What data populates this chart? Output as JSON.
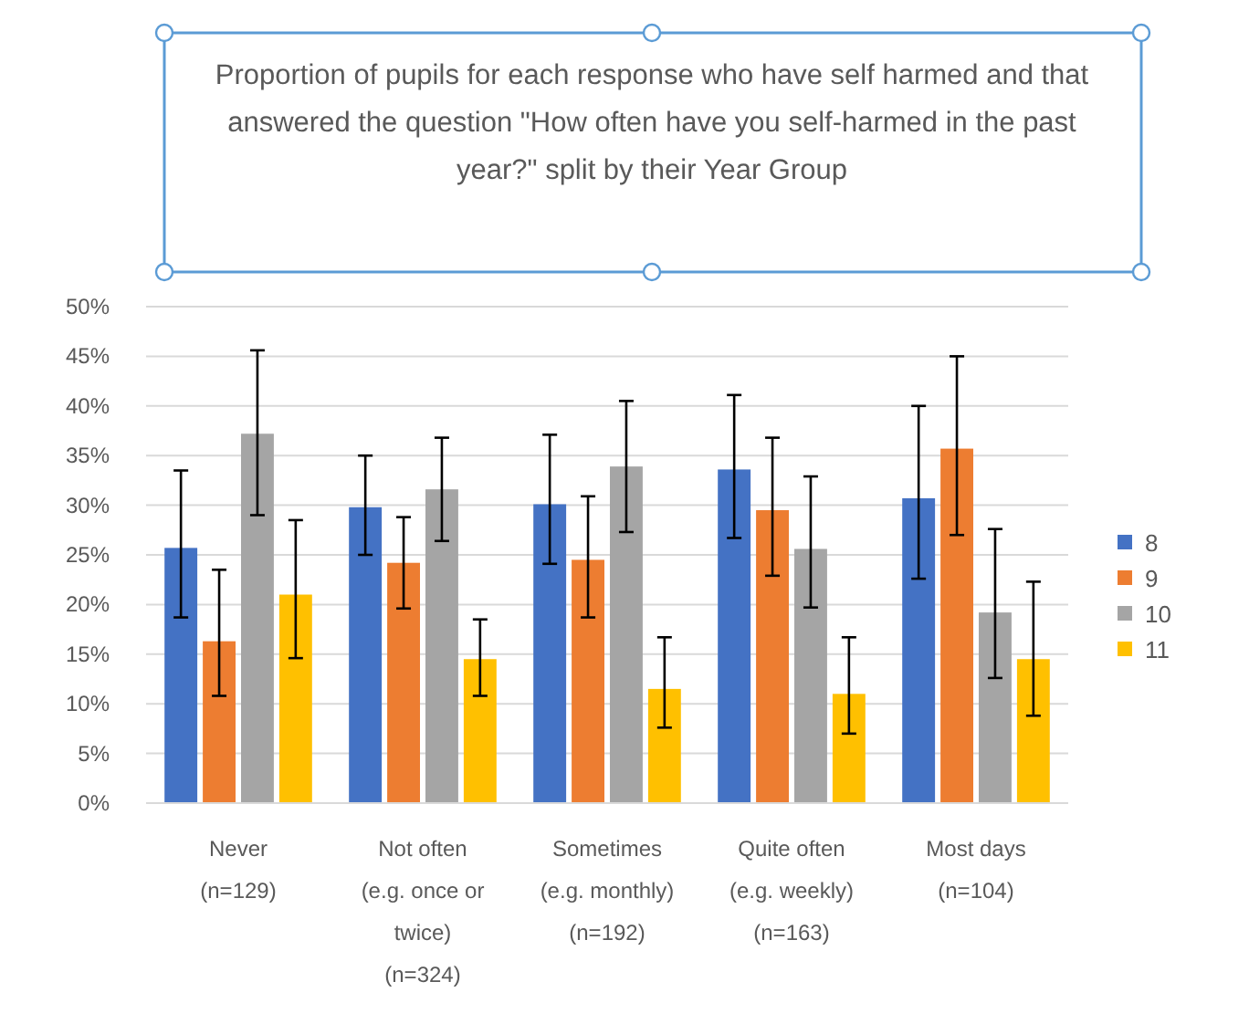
{
  "chart_data": {
    "type": "bar",
    "title": "Proportion of pupils for each response who have self harmed and that answered the question \"How often have you self-harmed in the past year?\" split by their Year Group",
    "categories": [
      "Never (n=129)",
      "Not often (e.g. once or twice) (n=324)",
      "Sometimes (e.g. monthly) (n=192)",
      "Quite often (e.g. weekly) (n=163)",
      "Most days (n=104)"
    ],
    "series": [
      {
        "name": "8",
        "color": "#4472c4",
        "values": [
          25.7,
          29.8,
          30.1,
          33.6,
          30.7
        ],
        "errors": [
          [
            18.7,
            33.5
          ],
          [
            25.0,
            35.0
          ],
          [
            24.1,
            37.1
          ],
          [
            26.7,
            41.1
          ],
          [
            22.6,
            40.0
          ]
        ]
      },
      {
        "name": "9",
        "color": "#ed7d31",
        "values": [
          16.3,
          24.2,
          24.5,
          29.5,
          35.7
        ],
        "errors": [
          [
            10.8,
            23.5
          ],
          [
            19.6,
            28.8
          ],
          [
            18.7,
            30.9
          ],
          [
            22.9,
            36.8
          ],
          [
            27.0,
            45.0
          ]
        ]
      },
      {
        "name": "10",
        "color": "#a5a5a5",
        "values": [
          37.2,
          31.6,
          33.9,
          25.6,
          19.2
        ],
        "errors": [
          [
            29.0,
            45.6
          ],
          [
            26.4,
            36.8
          ],
          [
            27.3,
            40.5
          ],
          [
            19.7,
            32.9
          ],
          [
            12.6,
            27.6
          ]
        ]
      },
      {
        "name": "11",
        "color": "#ffc000",
        "values": [
          21.0,
          14.5,
          11.5,
          11.0,
          14.5
        ],
        "errors": [
          [
            14.6,
            28.5
          ],
          [
            10.8,
            18.5
          ],
          [
            7.6,
            16.7
          ],
          [
            7.0,
            16.7
          ],
          [
            8.8,
            22.3
          ]
        ]
      }
    ],
    "ylim": [
      0,
      50
    ],
    "yticks": [
      {
        "value": 0,
        "label": "0%"
      },
      {
        "value": 5,
        "label": "5%"
      },
      {
        "value": 10,
        "label": "10%"
      },
      {
        "value": 15,
        "label": "15%"
      },
      {
        "value": 20,
        "label": "20%"
      },
      {
        "value": 25,
        "label": "25%"
      },
      {
        "value": 30,
        "label": "30%"
      },
      {
        "value": 35,
        "label": "35%"
      },
      {
        "value": 40,
        "label": "40%"
      },
      {
        "value": 45,
        "label": "45%"
      },
      {
        "value": 50,
        "label": "50%"
      }
    ],
    "grid": "y",
    "legend": "right"
  }
}
